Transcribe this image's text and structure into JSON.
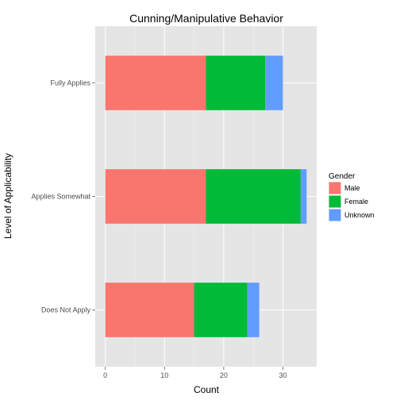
{
  "chart_data": {
    "type": "bar",
    "orientation": "horizontal",
    "stacked": true,
    "title": "Cunning/Manipulative Behavior",
    "xlabel": "Count",
    "ylabel": "Level of Applicability",
    "categories": [
      "Fully Applies",
      "Applies Somewhat",
      "Does Not Apply"
    ],
    "series": [
      {
        "name": "Male",
        "values": [
          17,
          17,
          15
        ],
        "color": "#F8766D"
      },
      {
        "name": "Female",
        "values": [
          10,
          16,
          9
        ],
        "color": "#00BA38"
      },
      {
        "name": "Unknown",
        "values": [
          3,
          1,
          2
        ],
        "color": "#619CFF"
      }
    ],
    "xlim": [
      -1.7,
      35.7
    ],
    "xticks": [
      0,
      10,
      20,
      30
    ],
    "legend": {
      "title": "Gender",
      "position": "right"
    },
    "grid": true,
    "panel_color": "#E5E5E5",
    "grid_color": "#FFFFFF"
  }
}
